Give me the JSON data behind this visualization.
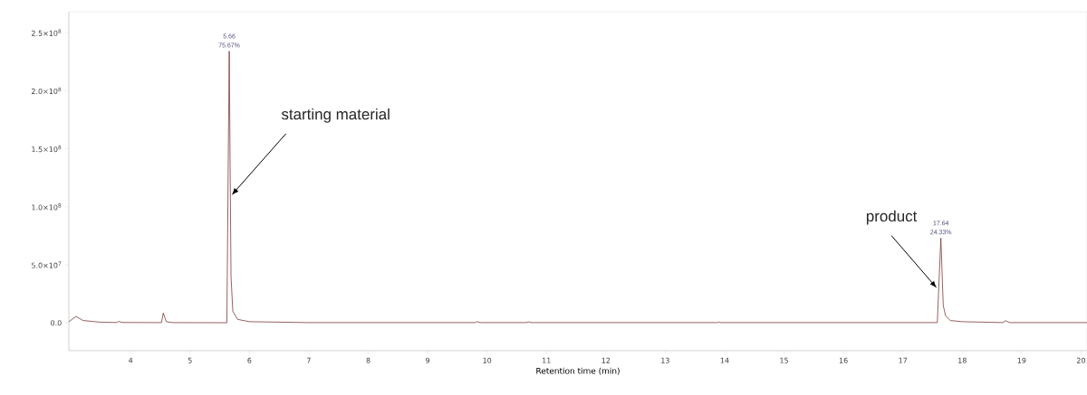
{
  "chart_data": {
    "type": "line",
    "xlabel": "Retention time (min)",
    "x": [
      2.96,
      3.08,
      3.2,
      3.5,
      3.76,
      3.8,
      3.86,
      4.52,
      4.55,
      4.6,
      4.7,
      5.62,
      5.66,
      5.69,
      5.72,
      5.8,
      6.0,
      7.0,
      9.8,
      9.83,
      9.9,
      10.66,
      10.7,
      10.75,
      13.88,
      13.9,
      13.93,
      17.58,
      17.64,
      17.68,
      17.72,
      17.8,
      18.0,
      18.68,
      18.73,
      18.8,
      20.1
    ],
    "series": [
      {
        "color": "#7b3a3a",
        "values": [
          1000000,
          5500000,
          2000000,
          500000,
          300000,
          1200000,
          300000,
          200000,
          8500000,
          1000000,
          200000,
          100000,
          234000000,
          40000000,
          10000000,
          3000000,
          1000000,
          200000,
          200000,
          1000000,
          200000,
          200000,
          800000,
          200000,
          200000,
          700000,
          200000,
          200000,
          73000000,
          15000000,
          6000000,
          2000000,
          1000000,
          200000,
          1800000,
          200000,
          200000
        ]
      }
    ],
    "xlim": [
      2.96,
      20.1
    ],
    "ylim": [
      -24000000,
      268000000
    ],
    "xticks": [
      4,
      5,
      6,
      7,
      8,
      9,
      10,
      11,
      12,
      13,
      14,
      15,
      16,
      17,
      18,
      19,
      20
    ],
    "yticks": [
      {
        "value": 0,
        "label": "0.0"
      },
      {
        "value": 50000000,
        "label": "5.0×10$^{7}$"
      },
      {
        "value": 100000000,
        "label": "1.0×10$^{8}$"
      },
      {
        "value": 150000000,
        "label": "1.5×10$^{8}$"
      },
      {
        "value": 200000000,
        "label": "2.0×10$^{8}$"
      },
      {
        "value": 250000000,
        "label": "2.5×10$^{8}$"
      }
    ],
    "annotations": [
      {
        "text": "5.66",
        "x": 5.66,
        "y": 234000000
      },
      {
        "text": "75.67%",
        "x": 5.66,
        "y": 234000000
      },
      {
        "text": "starting material",
        "x": 5.7,
        "y": 110000000
      },
      {
        "text": "17.64",
        "x": 17.64,
        "y": 73000000
      },
      {
        "text": "24.33%",
        "x": 17.64,
        "y": 73000000
      },
      {
        "text": "product",
        "x": 17.57,
        "y": 30000000
      }
    ],
    "grid": false,
    "marker": "none",
    "line_style": "solid"
  }
}
